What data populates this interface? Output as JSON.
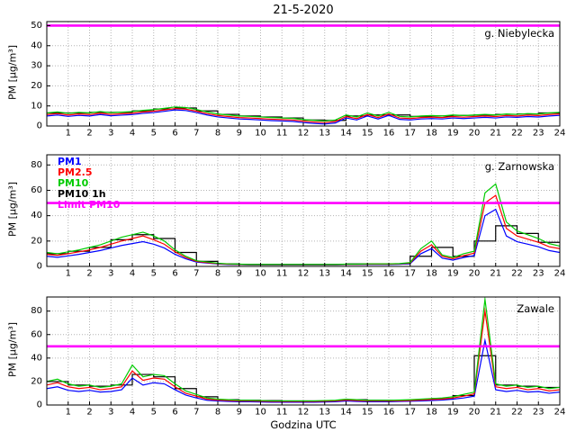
{
  "title": "21-5-2020",
  "xlabel": "Godzina UTC",
  "colors": {
    "pm1": "#0000ff",
    "pm2_5": "#ff0000",
    "pm10": "#00cc00",
    "pm10_1h": "#000000",
    "limit": "#ff00ff",
    "grid": "#b3b3b3",
    "axis": "#000000"
  },
  "legend": {
    "items": [
      {
        "label": "PM1",
        "color": "#0000ff"
      },
      {
        "label": "PM2.5",
        "color": "#ff0000"
      },
      {
        "label": "PM10",
        "color": "#00cc00"
      },
      {
        "label": "PM10 1h",
        "color": "#000000"
      },
      {
        "label": "Limit PM10",
        "color": "#ff00ff"
      }
    ]
  },
  "chart_data": [
    {
      "type": "line",
      "station": "g. Niebylecka",
      "ylabel": "PM [µg/m³]",
      "xlim": [
        0,
        24
      ],
      "xticks": [
        1,
        2,
        3,
        4,
        5,
        6,
        7,
        8,
        9,
        10,
        11,
        12,
        13,
        14,
        15,
        16,
        17,
        18,
        19,
        20,
        21,
        22,
        23,
        24
      ],
      "ylim": [
        0,
        52
      ],
      "yticks": [
        0,
        10,
        20,
        30,
        40,
        50
      ],
      "limit": {
        "name": "Limit PM10",
        "value": 50,
        "color": "#ff00ff"
      },
      "series": [
        {
          "name": "PM10 1h",
          "color": "#000000",
          "type": "step",
          "x0": 0,
          "dx": 1,
          "values": [
            6.5,
            6.5,
            6.8,
            6.8,
            7.5,
            8.5,
            9,
            7.5,
            5.8,
            5,
            4.5,
            4,
            3,
            2.8,
            5,
            5.5,
            5.5,
            4.8,
            5,
            5.3,
            5.5,
            5.8,
            6,
            6.5
          ]
        },
        {
          "name": "PM1",
          "color": "#0000ff",
          "type": "line",
          "x0": 0,
          "dx": 0.5,
          "values": [
            5,
            5.5,
            4.8,
            5.3,
            5,
            5.7,
            5.1,
            5.4,
            5.7,
            6.3,
            6.7,
            7.3,
            8,
            7.7,
            6.7,
            5.5,
            4.5,
            4,
            3.5,
            3.3,
            3,
            2.7,
            2.5,
            2.3,
            1.7,
            1.3,
            1,
            1.5,
            4,
            3,
            5,
            3.5,
            5.3,
            3.3,
            3,
            3.5,
            3.7,
            3.5,
            4,
            3.7,
            4,
            4.3,
            4,
            4.5,
            4.3,
            4.7,
            4.5,
            5,
            5.3
          ]
        },
        {
          "name": "PM2.5",
          "color": "#ff0000",
          "type": "line",
          "x0": 0,
          "dx": 0.5,
          "values": [
            5.7,
            6.2,
            5.5,
            6,
            5.7,
            6.4,
            5.8,
            6.1,
            6.4,
            7,
            7.4,
            8,
            8.7,
            8.4,
            7.4,
            6.2,
            5.2,
            4.7,
            4.2,
            4,
            3.7,
            3.4,
            3.2,
            3,
            2.4,
            2,
            1.7,
            2.2,
            4.7,
            3.7,
            5.7,
            4.2,
            6,
            4,
            3.7,
            4.2,
            4.4,
            4.2,
            4.7,
            4.4,
            4.7,
            5,
            4.7,
            5.2,
            5,
            5.4,
            5.2,
            5.7,
            6
          ]
        },
        {
          "name": "PM10",
          "color": "#00cc00",
          "type": "line",
          "x0": 0,
          "dx": 0.5,
          "values": [
            6.5,
            7,
            6.3,
            6.8,
            6.5,
            7.2,
            6.6,
            6.9,
            7.2,
            7.8,
            8.2,
            8.8,
            9.5,
            9.2,
            8.2,
            7,
            6,
            5.5,
            5,
            4.8,
            4.5,
            4.2,
            4,
            3.8,
            3.2,
            2.8,
            2.5,
            3,
            5.5,
            4.5,
            6.5,
            5,
            6.8,
            4.8,
            4.5,
            5,
            5.2,
            5,
            5.5,
            5.2,
            5.5,
            5.8,
            5.5,
            6,
            5.8,
            6.2,
            6,
            6.5,
            6.8
          ]
        }
      ]
    },
    {
      "type": "line",
      "station": "g. Zarnowska",
      "ylabel": "PM [µg/m³]",
      "xlim": [
        0,
        24
      ],
      "xticks": [
        1,
        2,
        3,
        4,
        5,
        6,
        7,
        8,
        9,
        10,
        11,
        12,
        13,
        14,
        15,
        16,
        17,
        18,
        19,
        20,
        21,
        22,
        23,
        24
      ],
      "ylim": [
        0,
        88
      ],
      "yticks": [
        0,
        20,
        40,
        60,
        80
      ],
      "limit": {
        "name": "Limit PM10",
        "value": 50,
        "color": "#ff00ff"
      },
      "series": [
        {
          "name": "PM10 1h",
          "color": "#000000",
          "type": "step",
          "x0": 0,
          "dx": 1,
          "values": [
            10,
            12,
            15,
            21,
            25,
            22,
            11,
            4,
            2,
            1.5,
            1.5,
            1.5,
            1.5,
            1.5,
            2,
            2,
            2,
            8,
            15,
            8,
            20,
            32,
            26,
            19
          ]
        },
        {
          "name": "PM1",
          "color": "#0000ff",
          "type": "line",
          "x0": 0,
          "dx": 0.5,
          "values": [
            8,
            7.2,
            8.3,
            9.5,
            11,
            12.5,
            14.5,
            16.5,
            18,
            19.5,
            17.5,
            14.5,
            9.5,
            6,
            3.4,
            2.6,
            1.9,
            1.5,
            1.4,
            1.1,
            1.1,
            1.1,
            1.1,
            1.1,
            1.1,
            1.1,
            1.1,
            1.1,
            1.4,
            1.4,
            1.5,
            1.5,
            1.5,
            1.7,
            2.2,
            10,
            14,
            6.5,
            5,
            7,
            8.5,
            40,
            45,
            24,
            19.5,
            17.5,
            15.5,
            12.5,
            11
          ]
        },
        {
          "name": "PM2.5",
          "color": "#ff0000",
          "type": "line",
          "x0": 0,
          "dx": 0.5,
          "values": [
            9.5,
            8.8,
            10,
            11.5,
            13,
            15,
            17.5,
            20,
            22,
            24,
            21,
            17.5,
            11.5,
            7,
            4,
            3,
            2.2,
            1.8,
            1.6,
            1.3,
            1.3,
            1.3,
            1.3,
            1.3,
            1.3,
            1.3,
            1.3,
            1.3,
            1.6,
            1.6,
            1.8,
            1.8,
            1.8,
            2,
            2.6,
            12,
            17,
            8,
            6,
            8.5,
            10.5,
            50,
            56,
            30,
            24,
            21.5,
            19,
            15.5,
            14
          ]
        },
        {
          "name": "PM10",
          "color": "#00cc00",
          "type": "line",
          "x0": 0,
          "dx": 0.5,
          "values": [
            11,
            10,
            11.5,
            13,
            15,
            17,
            20,
            23,
            25,
            27,
            24,
            20,
            13,
            8,
            4.5,
            3.5,
            2.5,
            2,
            1.8,
            1.5,
            1.5,
            1.5,
            1.5,
            1.5,
            1.5,
            1.5,
            1.5,
            1.5,
            1.8,
            1.8,
            2,
            2,
            2,
            2.2,
            3,
            14,
            20,
            9,
            7,
            10,
            12,
            58,
            65,
            35,
            28,
            25,
            22,
            18,
            16
          ]
        }
      ]
    },
    {
      "type": "line",
      "station": "Zawale",
      "ylabel": "PM [µg/m³]",
      "xlim": [
        0,
        24
      ],
      "xticks": [
        1,
        2,
        3,
        4,
        5,
        6,
        7,
        8,
        9,
        10,
        11,
        12,
        13,
        14,
        15,
        16,
        17,
        18,
        19,
        20,
        21,
        22,
        23,
        24
      ],
      "ylim": [
        0,
        92
      ],
      "yticks": [
        0,
        20,
        40,
        60,
        80
      ],
      "limit": {
        "name": "Limit PM10",
        "value": 50,
        "color": "#ff00ff"
      },
      "series": [
        {
          "name": "PM10 1h",
          "color": "#000000",
          "type": "step",
          "x0": 0,
          "dx": 1,
          "values": [
            20,
            17,
            16,
            17,
            26,
            24,
            14,
            7,
            4.5,
            4,
            3.8,
            3.5,
            3.5,
            3.8,
            4.5,
            4,
            4,
            4.5,
            5.5,
            8,
            42,
            17,
            16,
            15
          ]
        },
        {
          "name": "PM1",
          "color": "#0000ff",
          "type": "line",
          "x0": 0,
          "dx": 0.5,
          "values": [
            14,
            15.5,
            12.5,
            11.5,
            12.5,
            11,
            11.5,
            13,
            23,
            17,
            19,
            18,
            13,
            8.5,
            6,
            4,
            3.4,
            3,
            2.8,
            2.8,
            2.6,
            2.4,
            2.4,
            2.4,
            2.4,
            2.4,
            2.6,
            2.8,
            3.4,
            3,
            2.8,
            2.8,
            2.8,
            3,
            3.2,
            3.4,
            3.8,
            4.2,
            5,
            6,
            7.5,
            55,
            13,
            11.5,
            12.5,
            11,
            11.5,
            10,
            11
          ]
        },
        {
          "name": "PM2.5",
          "color": "#ff0000",
          "type": "line",
          "x0": 0,
          "dx": 0.5,
          "values": [
            17,
            19,
            15.5,
            14,
            15,
            13,
            14,
            15.5,
            29,
            21,
            23,
            22,
            15.5,
            10,
            7.5,
            5,
            4.2,
            3.8,
            3.4,
            3.4,
            3.2,
            3,
            3,
            3,
            3,
            3,
            3.2,
            3.4,
            4.2,
            3.8,
            3.4,
            3.4,
            3.4,
            3.6,
            3.8,
            4.2,
            4.7,
            5,
            6,
            7.5,
            9.5,
            80,
            15.5,
            14,
            15,
            13,
            14,
            12,
            13
          ]
        },
        {
          "name": "PM10",
          "color": "#00cc00",
          "type": "line",
          "x0": 0,
          "dx": 0.5,
          "values": [
            20,
            22,
            18,
            16,
            17,
            15,
            16,
            18,
            34,
            24,
            26,
            25,
            18,
            12,
            9,
            6,
            5,
            4.5,
            4,
            4,
            3.8,
            3.5,
            3.5,
            3.5,
            3.5,
            3.5,
            3.8,
            4,
            5,
            4.5,
            4,
            4,
            4,
            4.2,
            4.5,
            5,
            5.5,
            6,
            7,
            9,
            11,
            90,
            18,
            16,
            17,
            15,
            16,
            14,
            15
          ]
        }
      ]
    }
  ]
}
